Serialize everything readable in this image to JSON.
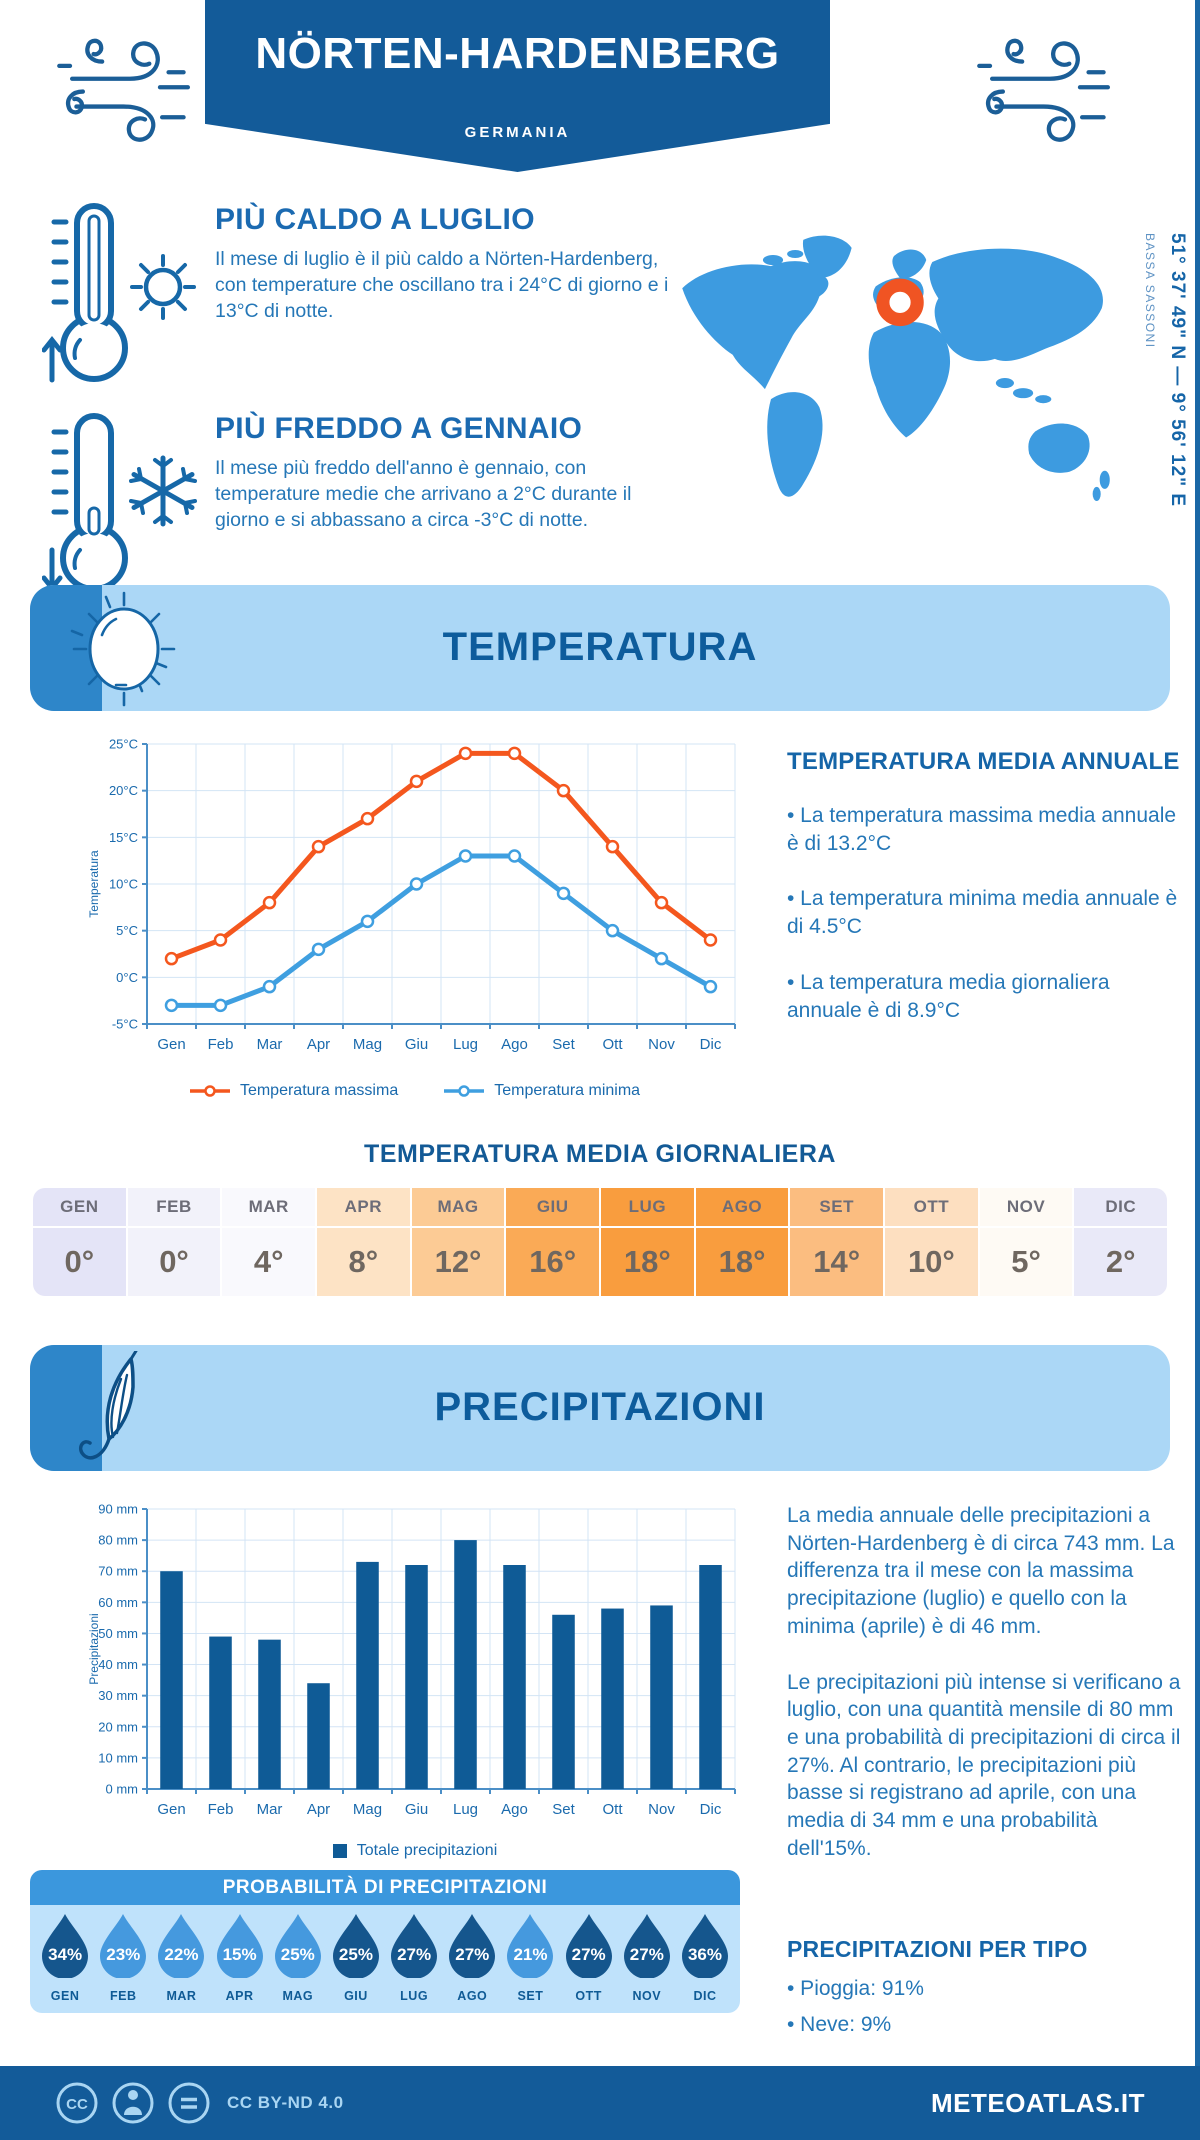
{
  "header": {
    "title": "NÖRTEN-HARDENBERG",
    "subtitle": "GERMANIA"
  },
  "highlights": [
    {
      "title": "PIÙ CALDO A LUGLIO",
      "text": "Il mese di luglio è il più caldo a Nörten-Hardenberg, con temperature che oscillano tra i 24°C di giorno e i 13°C di notte."
    },
    {
      "title": "PIÙ FREDDO A GENNAIO",
      "text": "Il mese più freddo dell'anno è gennaio, con temperature medie che arrivano a 2°C durante il giorno e si abbassano a circa -3°C di notte."
    }
  ],
  "map": {
    "coordinates": "51° 37' 49\" N — 9° 56' 12\" E",
    "region": "BASSA SASSONI",
    "marker_color": "#f05423",
    "land_color": "#3d9be0"
  },
  "sections": {
    "temperature": {
      "title": "TEMPERATURA"
    },
    "precipitation": {
      "title": "PRECIPITAZIONI"
    }
  },
  "chart_data": [
    {
      "type": "line",
      "categories": [
        "Gen",
        "Feb",
        "Mar",
        "Apr",
        "Mag",
        "Giu",
        "Lug",
        "Ago",
        "Set",
        "Ott",
        "Nov",
        "Dic"
      ],
      "series": [
        {
          "name": "Temperatura massima",
          "color": "#f4571e",
          "values": [
            2,
            4,
            8,
            14,
            17,
            21,
            24,
            24,
            20,
            14,
            8,
            4
          ]
        },
        {
          "name": "Temperatura minima",
          "color": "#3f9fe0",
          "values": [
            -3,
            -3,
            -1,
            3,
            6,
            10,
            13,
            13,
            9,
            5,
            2,
            -1
          ]
        }
      ],
      "title": "",
      "xlabel": "",
      "ylabel": "Temperatura",
      "ylim": [
        -5,
        25
      ],
      "ytick_step": 5,
      "ytick_suffix": "°C",
      "grid": true,
      "legend_position": "bottom"
    },
    {
      "type": "bar",
      "categories": [
        "Gen",
        "Feb",
        "Mar",
        "Apr",
        "Mag",
        "Giu",
        "Lug",
        "Ago",
        "Set",
        "Ott",
        "Nov",
        "Dic"
      ],
      "series": [
        {
          "name": "Totale precipitazioni",
          "color": "#0f5b96",
          "values": [
            70,
            49,
            48,
            34,
            73,
            72,
            80,
            72,
            56,
            58,
            59,
            72
          ]
        }
      ],
      "title": "",
      "xlabel": "",
      "ylabel": "Precipitazioni",
      "ylim": [
        0,
        90
      ],
      "ytick_step": 10,
      "ytick_suffix": " mm",
      "grid": true,
      "legend_position": "bottom"
    }
  ],
  "annual": {
    "title": "TEMPERATURA MEDIA ANNUALE",
    "bullets": [
      "• La temperatura massima media annuale è di 13.2°C",
      "• La temperatura minima media annuale è di 4.5°C",
      "• La temperatura media giornaliera annuale è di 8.9°C"
    ]
  },
  "daily_table": {
    "title": "TEMPERATURA MEDIA GIORNALIERA",
    "months": [
      "GEN",
      "FEB",
      "MAR",
      "APR",
      "MAG",
      "GIU",
      "LUG",
      "AGO",
      "SET",
      "OTT",
      "NOV",
      "DIC"
    ],
    "values": [
      "0°",
      "0°",
      "4°",
      "8°",
      "12°",
      "16°",
      "18°",
      "18°",
      "14°",
      "10°",
      "5°",
      "2°"
    ],
    "colors": [
      "#e4e4f7",
      "#f2f2fa",
      "#f9f9fd",
      "#fde3c5",
      "#fccb95",
      "#faaa56",
      "#f99d3e",
      "#f99d3e",
      "#fbbd80",
      "#fddfc0",
      "#fefaf4",
      "#e9e9f8"
    ]
  },
  "precip_text": {
    "p1": "La media annuale delle precipitazioni a Nörten-Hardenberg è di circa 743 mm. La differenza tra il mese con la massima precipitazione (luglio) e quello con la minima (aprile) è di 46 mm.",
    "p2": "Le precipitazioni più intense si verificano a luglio, con una quantità mensile di 80 mm e una probabilità di precipitazioni di circa il 27%. Al contrario, le precipitazioni più basse si registrano ad aprile, con una media di 34 mm e una probabilità dell'15%."
  },
  "precip_probability": {
    "title": "PROBABILITÀ DI PRECIPITAZIONI",
    "months": [
      "GEN",
      "FEB",
      "MAR",
      "APR",
      "MAG",
      "GIU",
      "LUG",
      "AGO",
      "SET",
      "OTT",
      "NOV",
      "DIC"
    ],
    "values": [
      "34%",
      "23%",
      "22%",
      "15%",
      "25%",
      "25%",
      "27%",
      "27%",
      "21%",
      "27%",
      "27%",
      "36%"
    ],
    "variants": [
      "dark",
      "light",
      "light",
      "light",
      "light",
      "dark",
      "dark",
      "dark",
      "light",
      "dark",
      "dark",
      "dark"
    ],
    "colors": {
      "dark": "#15568d",
      "light": "#4599de"
    }
  },
  "precip_type": {
    "title": "PRECIPITAZIONI PER TIPO",
    "bullets": [
      "• Pioggia: 91%",
      "• Neve: 9%"
    ]
  },
  "footer": {
    "license": "CC BY-ND 4.0",
    "site": "METEOATLAS.IT"
  }
}
